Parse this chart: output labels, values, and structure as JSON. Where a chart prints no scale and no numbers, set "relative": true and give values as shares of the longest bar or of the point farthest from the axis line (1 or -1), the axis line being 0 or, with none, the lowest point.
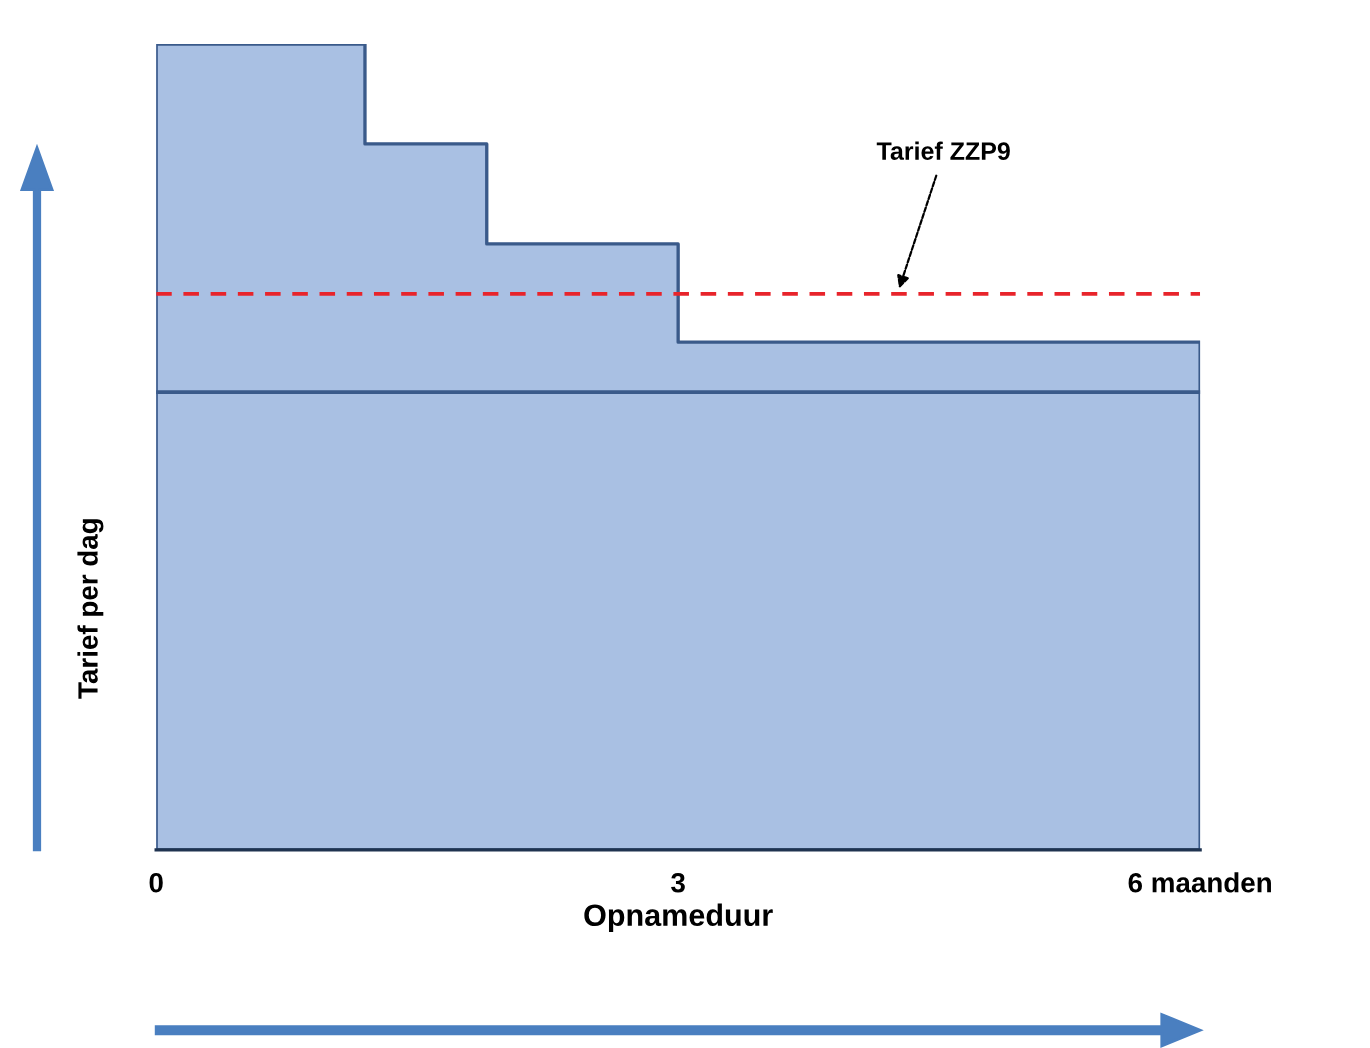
{
  "chart_data": {
    "type": "area",
    "relative": true,
    "xlabel": "Opnameduur",
    "ylabel": "Tarief per dag",
    "x": [
      0,
      1.2,
      1.9,
      3,
      6
    ],
    "series": [
      {
        "color": "#a9c0e3",
        "values": [
          1,
          0.876,
          0.752,
          0.63,
          0.63
        ]
      }
    ],
    "xlim": [
      0,
      6
    ],
    "xticks": [
      0,
      3,
      {
        "value": 6,
        "label": "6 maanden"
      }
    ],
    "ref_lines": [
      {
        "axis": "y",
        "value": 0.69,
        "label": "Tarief ZZP9",
        "color": "#e8242b",
        "line_style": "dashed"
      },
      {
        "axis": "y",
        "value": 0.568,
        "label": null,
        "color": "#3a5a8a",
        "line_style": "solid"
      }
    ],
    "grid": false
  }
}
